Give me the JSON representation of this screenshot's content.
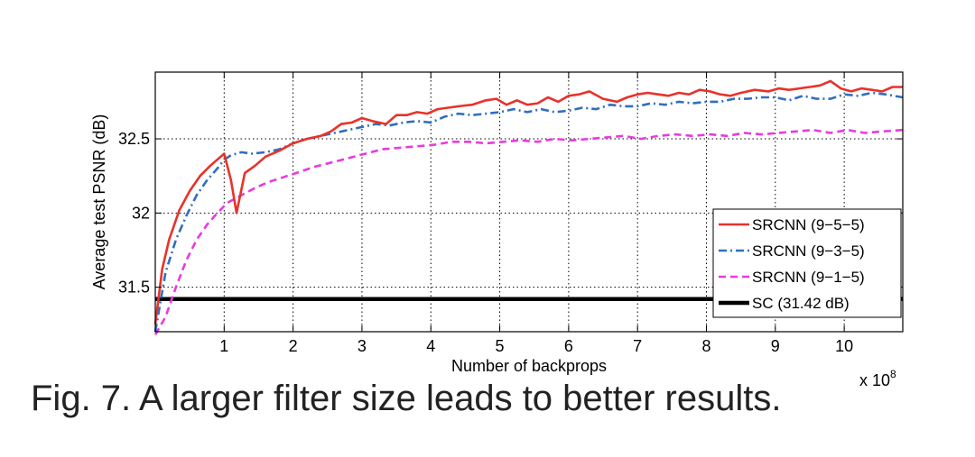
{
  "chart_data": {
    "type": "line",
    "xlabel": "Number of backprops",
    "ylabel": "Average test PSNR (dB)",
    "x_multiplier_base": "x 10",
    "x_multiplier_exp": "8",
    "xlim": [
      0,
      10.85
    ],
    "ylim": [
      31.2,
      32.95
    ],
    "x_ticks": [
      1,
      2,
      3,
      4,
      5,
      6,
      7,
      8,
      9,
      10
    ],
    "x_tick_labels": [
      "1",
      "2",
      "3",
      "4",
      "5",
      "6",
      "7",
      "8",
      "9",
      "10"
    ],
    "y_ticks": [
      31.5,
      32,
      32.5
    ],
    "y_tick_labels": [
      "31.5",
      "32",
      "32.5"
    ],
    "grid": true,
    "legend_position": "lower-right",
    "series": [
      {
        "name": "SRCNN (9−5−5)",
        "color": "#e8322a",
        "style": "solid",
        "x": [
          0.0,
          0.1,
          0.2,
          0.35,
          0.5,
          0.65,
          0.8,
          0.95,
          1.0,
          1.1,
          1.18,
          1.3,
          1.45,
          1.6,
          1.8,
          2.0,
          2.2,
          2.4,
          2.55,
          2.7,
          2.85,
          3.0,
          3.15,
          3.35,
          3.5,
          3.65,
          3.8,
          3.95,
          4.1,
          4.25,
          4.4,
          4.6,
          4.8,
          4.95,
          5.1,
          5.25,
          5.4,
          5.55,
          5.7,
          5.85,
          6.0,
          6.15,
          6.3,
          6.5,
          6.7,
          6.85,
          7.0,
          7.15,
          7.3,
          7.45,
          7.6,
          7.75,
          7.9,
          8.05,
          8.2,
          8.35,
          8.5,
          8.7,
          8.9,
          9.05,
          9.2,
          9.35,
          9.5,
          9.65,
          9.8,
          9.95,
          10.1,
          10.25,
          10.4,
          10.55,
          10.7,
          10.85
        ],
        "y": [
          31.25,
          31.62,
          31.82,
          32.02,
          32.15,
          32.25,
          32.32,
          32.38,
          32.4,
          32.22,
          32.0,
          32.27,
          32.32,
          32.38,
          32.42,
          32.47,
          32.5,
          32.52,
          32.55,
          32.6,
          32.61,
          32.64,
          32.62,
          32.6,
          32.66,
          32.66,
          32.68,
          32.67,
          32.7,
          32.71,
          32.72,
          32.73,
          32.76,
          32.77,
          32.73,
          32.76,
          32.73,
          32.74,
          32.78,
          32.75,
          32.79,
          32.8,
          32.82,
          32.77,
          32.75,
          32.78,
          32.8,
          32.81,
          32.8,
          32.79,
          32.81,
          32.8,
          32.83,
          32.82,
          32.8,
          32.79,
          32.81,
          32.83,
          32.82,
          32.84,
          32.83,
          32.84,
          32.85,
          32.86,
          32.89,
          32.84,
          32.82,
          32.84,
          32.83,
          32.82,
          32.85,
          32.85
        ]
      },
      {
        "name": "SRCNN (9−3−5)",
        "color": "#2f6fbf",
        "style": "dashdot",
        "x": [
          0.0,
          0.15,
          0.3,
          0.45,
          0.6,
          0.75,
          0.9,
          1.0,
          1.1,
          1.25,
          1.4,
          1.6,
          1.8,
          2.0,
          2.2,
          2.4,
          2.6,
          2.8,
          3.0,
          3.2,
          3.4,
          3.6,
          3.8,
          4.0,
          4.2,
          4.4,
          4.6,
          4.8,
          5.0,
          5.2,
          5.4,
          5.6,
          5.8,
          6.0,
          6.2,
          6.4,
          6.6,
          6.8,
          7.0,
          7.2,
          7.4,
          7.6,
          7.8,
          8.0,
          8.2,
          8.4,
          8.6,
          8.8,
          9.0,
          9.2,
          9.4,
          9.6,
          9.8,
          10.0,
          10.2,
          10.4,
          10.6,
          10.85
        ],
        "y": [
          31.2,
          31.6,
          31.82,
          31.98,
          32.12,
          32.22,
          32.3,
          32.36,
          32.39,
          32.41,
          32.4,
          32.41,
          32.43,
          32.47,
          32.5,
          32.52,
          32.54,
          32.56,
          32.58,
          32.6,
          32.59,
          32.61,
          32.62,
          32.61,
          32.65,
          32.67,
          32.66,
          32.67,
          32.68,
          32.7,
          32.68,
          32.7,
          32.68,
          32.69,
          32.71,
          32.7,
          32.73,
          32.72,
          32.72,
          32.74,
          32.73,
          32.75,
          32.74,
          32.75,
          32.75,
          32.77,
          32.77,
          32.78,
          32.78,
          32.76,
          32.79,
          32.77,
          32.77,
          32.8,
          32.79,
          32.81,
          32.8,
          32.78
        ]
      },
      {
        "name": "SRCNN (9−1−5)",
        "color": "#e83ae0",
        "style": "dashed",
        "x": [
          0.0,
          0.15,
          0.3,
          0.45,
          0.6,
          0.75,
          0.9,
          1.05,
          1.25,
          1.45,
          1.65,
          1.85,
          2.05,
          2.3,
          2.55,
          2.8,
          3.05,
          3.3,
          3.55,
          3.8,
          4.05,
          4.3,
          4.55,
          4.8,
          5.05,
          5.3,
          5.55,
          5.8,
          6.05,
          6.3,
          6.55,
          6.8,
          7.05,
          7.3,
          7.55,
          7.8,
          8.05,
          8.3,
          8.55,
          8.8,
          9.05,
          9.3,
          9.55,
          9.8,
          10.05,
          10.3,
          10.55,
          10.85
        ],
        "y": [
          31.18,
          31.3,
          31.5,
          31.68,
          31.82,
          31.92,
          32.0,
          32.07,
          32.12,
          32.17,
          32.21,
          32.24,
          32.27,
          32.31,
          32.34,
          32.37,
          32.4,
          32.43,
          32.44,
          32.45,
          32.46,
          32.48,
          32.48,
          32.47,
          32.48,
          32.49,
          32.48,
          32.5,
          32.49,
          32.5,
          32.51,
          32.52,
          32.5,
          32.52,
          32.53,
          32.52,
          32.53,
          32.52,
          32.54,
          32.53,
          32.54,
          32.55,
          32.56,
          32.54,
          32.56,
          32.54,
          32.55,
          32.56
        ]
      },
      {
        "name": "SC (31.42 dB)",
        "color": "#000000",
        "style": "solid-thick",
        "x": [
          0.0,
          10.85
        ],
        "y": [
          31.42,
          31.42
        ]
      }
    ]
  },
  "caption": "Fig. 7.  A larger filter size leads to better results."
}
